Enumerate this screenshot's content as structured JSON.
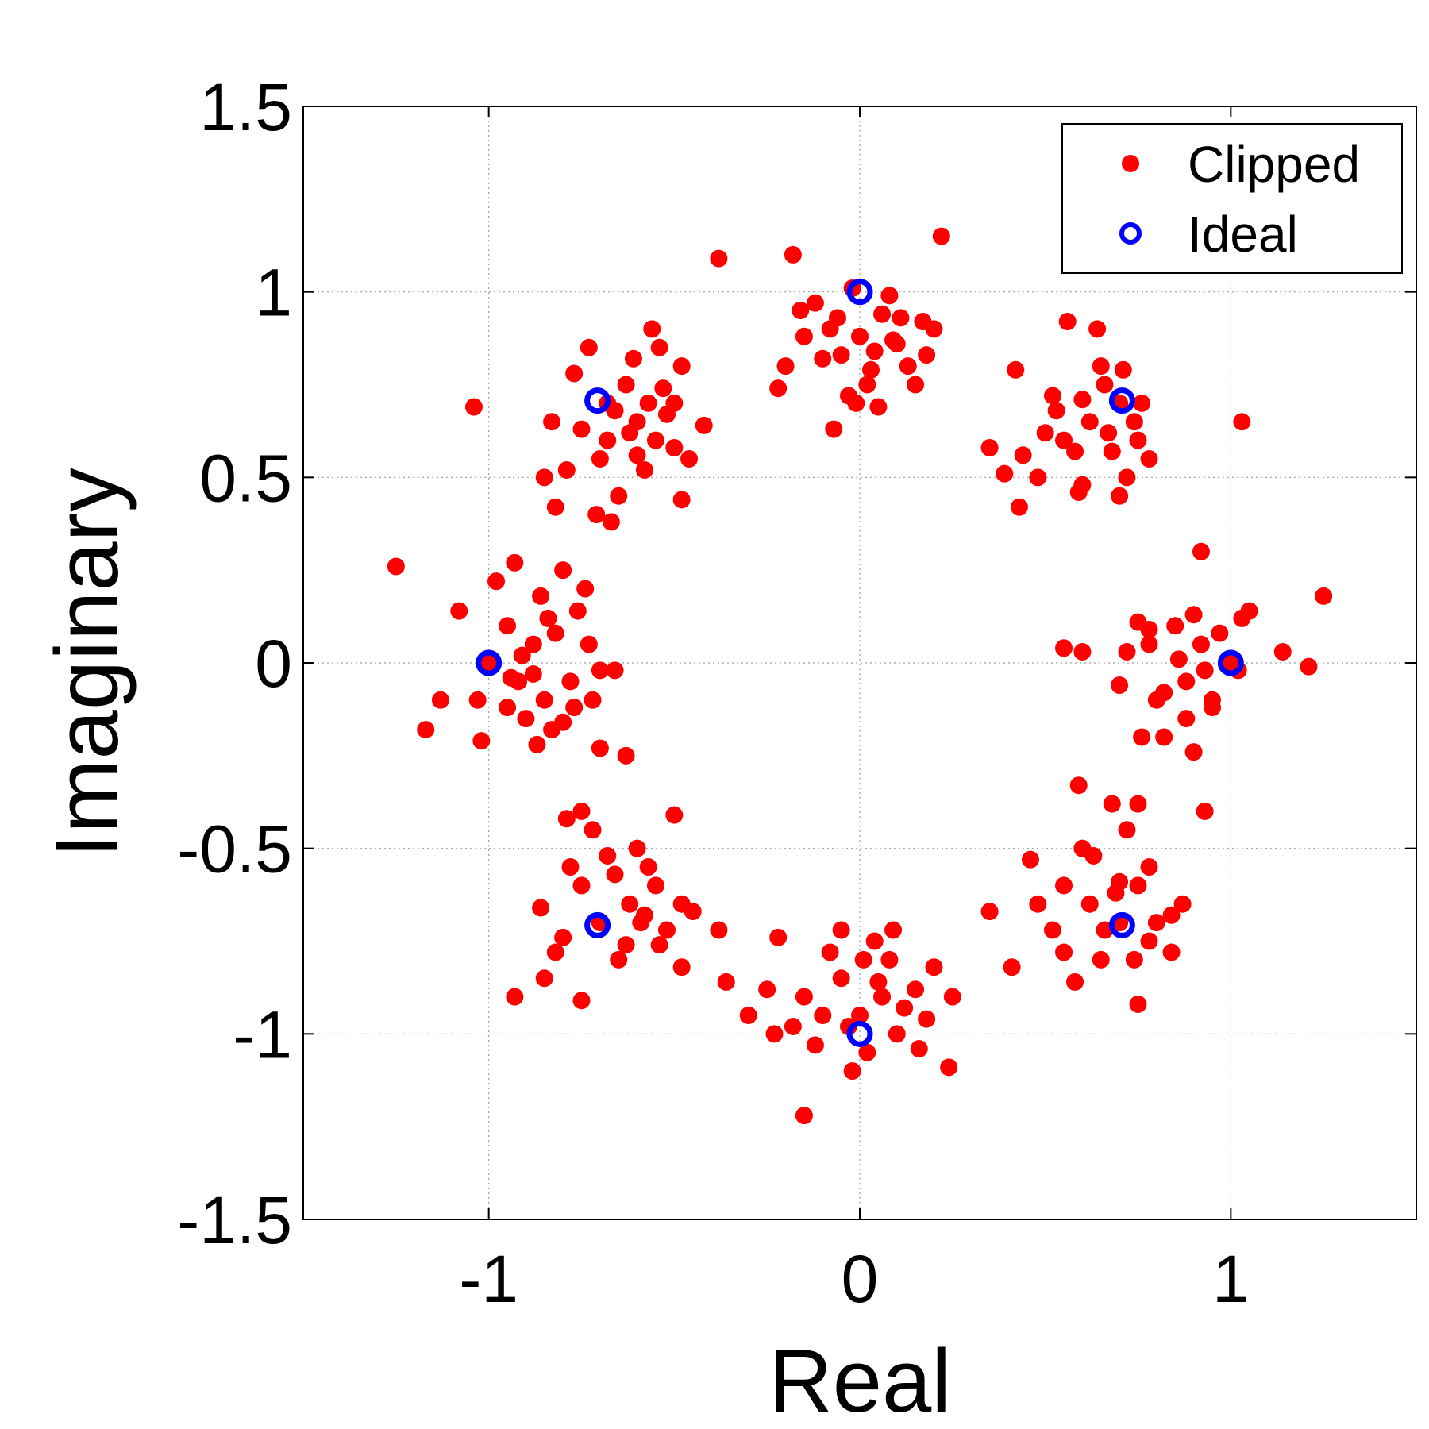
{
  "chart_data": {
    "type": "scatter",
    "title": "",
    "xlabel": "Real",
    "ylabel": "Imaginary",
    "xlim": [
      -1.5,
      1.5
    ],
    "ylim": [
      -1.5,
      1.5
    ],
    "xticks": [
      -1,
      0,
      1
    ],
    "xtick_labels": [
      "-1",
      "0",
      "1"
    ],
    "yticks": [
      -1.5,
      -1,
      -0.5,
      0,
      0.5,
      1,
      1.5
    ],
    "ytick_labels": [
      "-1.5",
      "-1",
      "-0.5",
      "0",
      "0.5",
      "1",
      "1.5"
    ],
    "grid": true,
    "legend_position": "top-right",
    "series": [
      {
        "name": "Clipped",
        "color": "#ff0000",
        "marker": "filled-circle",
        "points": [
          [
            -0.02,
            1.01
          ],
          [
            0.06,
            0.94
          ],
          [
            -0.08,
            0.9
          ],
          [
            0.1,
            0.86
          ],
          [
            -0.15,
            0.88
          ],
          [
            0.13,
            0.8
          ],
          [
            -0.05,
            0.83
          ],
          [
            0.02,
            0.75
          ],
          [
            -0.12,
            0.97
          ],
          [
            0.17,
            0.92
          ],
          [
            -0.2,
            0.8
          ],
          [
            0.05,
            0.69
          ],
          [
            -0.07,
            0.63
          ],
          [
            0.22,
            1.15
          ],
          [
            -0.18,
            1.1
          ],
          [
            0.2,
            0.9
          ],
          [
            -0.22,
            0.74
          ],
          [
            0.08,
            0.99
          ],
          [
            -0.03,
            0.72
          ],
          [
            0.15,
            0.75
          ],
          [
            0.0,
            0.88
          ],
          [
            -0.1,
            0.82
          ],
          [
            0.04,
            0.84
          ],
          [
            0.11,
            0.93
          ],
          [
            -0.16,
            0.95
          ],
          [
            0.18,
            0.83
          ],
          [
            -0.01,
            0.7
          ],
          [
            0.03,
            0.79
          ],
          [
            -0.06,
            0.93
          ],
          [
            0.09,
            0.87
          ],
          [
            -0.68,
            0.7
          ],
          [
            -0.6,
            0.65
          ],
          [
            -0.55,
            0.6
          ],
          [
            -0.7,
            0.55
          ],
          [
            -0.63,
            0.75
          ],
          [
            -0.5,
            0.7
          ],
          [
            -0.58,
            0.52
          ],
          [
            -0.75,
            0.63
          ],
          [
            -0.65,
            0.45
          ],
          [
            -0.48,
            0.8
          ],
          [
            -0.56,
            0.9
          ],
          [
            -0.85,
            0.5
          ],
          [
            -0.73,
            0.85
          ],
          [
            -0.46,
            0.55
          ],
          [
            -0.42,
            0.64
          ],
          [
            -0.67,
            0.38
          ],
          [
            -0.61,
            0.82
          ],
          [
            -0.53,
            0.74
          ],
          [
            -0.82,
            0.42
          ],
          [
            -0.77,
            0.78
          ],
          [
            -1.04,
            0.69
          ],
          [
            -0.38,
            1.09
          ],
          [
            -0.68,
            0.6
          ],
          [
            -0.62,
            0.62
          ],
          [
            -0.57,
            0.7
          ],
          [
            -0.52,
            0.67
          ],
          [
            -0.66,
            0.68
          ],
          [
            -0.71,
            0.4
          ],
          [
            -0.48,
            0.44
          ],
          [
            -0.6,
            0.56
          ],
          [
            -0.83,
            0.65
          ],
          [
            -0.79,
            0.52
          ],
          [
            -0.5,
            0.58
          ],
          [
            -0.54,
            0.85
          ],
          [
            0.7,
            0.7
          ],
          [
            0.62,
            0.65
          ],
          [
            0.55,
            0.6
          ],
          [
            0.75,
            0.6
          ],
          [
            0.65,
            0.8
          ],
          [
            0.52,
            0.72
          ],
          [
            0.78,
            0.55
          ],
          [
            0.6,
            0.48
          ],
          [
            0.72,
            0.5
          ],
          [
            0.48,
            0.5
          ],
          [
            0.56,
            0.92
          ],
          [
            0.64,
            0.9
          ],
          [
            0.44,
            0.56
          ],
          [
            0.42,
            0.79
          ],
          [
            0.35,
            0.58
          ],
          [
            0.39,
            0.51
          ],
          [
            0.43,
            0.42
          ],
          [
            0.76,
            0.7
          ],
          [
            0.74,
            0.65
          ],
          [
            0.68,
            0.57
          ],
          [
            0.58,
            0.57
          ],
          [
            0.5,
            0.62
          ],
          [
            1.03,
            0.65
          ],
          [
            0.7,
            0.45
          ],
          [
            0.59,
            0.46
          ],
          [
            0.67,
            0.62
          ],
          [
            0.6,
            0.71
          ],
          [
            0.53,
            0.68
          ],
          [
            0.66,
            0.75
          ],
          [
            0.71,
            0.79
          ],
          [
            -1.0,
            0.0
          ],
          [
            -0.92,
            -0.05
          ],
          [
            -0.88,
            0.05
          ],
          [
            -0.85,
            -0.1
          ],
          [
            -0.95,
            0.1
          ],
          [
            -0.82,
            0.08
          ],
          [
            -0.9,
            -0.15
          ],
          [
            -0.78,
            -0.05
          ],
          [
            -0.98,
            0.22
          ],
          [
            -1.08,
            0.14
          ],
          [
            -1.13,
            -0.1
          ],
          [
            -1.17,
            -0.18
          ],
          [
            -1.03,
            -0.1
          ],
          [
            -1.02,
            -0.21
          ],
          [
            -0.93,
            0.27
          ],
          [
            -0.86,
            0.18
          ],
          [
            -0.8,
            0.25
          ],
          [
            -0.74,
            0.2
          ],
          [
            -0.73,
            0.05
          ],
          [
            -0.7,
            -0.02
          ],
          [
            -0.66,
            -0.02
          ],
          [
            -0.72,
            -0.1
          ],
          [
            -0.83,
            -0.18
          ],
          [
            -0.87,
            -0.22
          ],
          [
            -0.95,
            -0.12
          ],
          [
            -0.77,
            -0.12
          ],
          [
            -1.25,
            0.26
          ],
          [
            -0.7,
            -0.23
          ],
          [
            -0.63,
            -0.25
          ],
          [
            -0.76,
            0.14
          ],
          [
            -0.91,
            0.02
          ],
          [
            -0.84,
            0.12
          ],
          [
            -0.88,
            -0.03
          ],
          [
            -0.94,
            -0.04
          ],
          [
            -0.8,
            -0.16
          ],
          [
            1.0,
            0.0
          ],
          [
            0.92,
            0.05
          ],
          [
            0.88,
            -0.05
          ],
          [
            0.85,
            0.1
          ],
          [
            0.95,
            -0.1
          ],
          [
            0.82,
            -0.08
          ],
          [
            0.9,
            0.13
          ],
          [
            0.78,
            0.05
          ],
          [
            0.92,
            0.3
          ],
          [
            1.03,
            0.12
          ],
          [
            1.05,
            0.14
          ],
          [
            1.14,
            0.03
          ],
          [
            1.21,
            -0.01
          ],
          [
            1.25,
            0.18
          ],
          [
            0.55,
            0.04
          ],
          [
            0.6,
            0.03
          ],
          [
            0.72,
            0.03
          ],
          [
            0.7,
            -0.06
          ],
          [
            0.75,
            0.11
          ],
          [
            0.78,
            0.09
          ],
          [
            0.8,
            -0.1
          ],
          [
            0.82,
            -0.2
          ],
          [
            0.88,
            -0.15
          ],
          [
            0.9,
            -0.24
          ],
          [
            0.95,
            -0.12
          ],
          [
            1.02,
            -0.02
          ],
          [
            0.86,
            0.01
          ],
          [
            0.93,
            -0.02
          ],
          [
            0.97,
            0.08
          ],
          [
            0.76,
            -0.2
          ],
          [
            -0.7,
            -0.7
          ],
          [
            -0.62,
            -0.65
          ],
          [
            -0.55,
            -0.6
          ],
          [
            -0.75,
            -0.6
          ],
          [
            -0.65,
            -0.8
          ],
          [
            -0.52,
            -0.72
          ],
          [
            -0.78,
            -0.55
          ],
          [
            -0.6,
            -0.5
          ],
          [
            -0.72,
            -0.45
          ],
          [
            -0.48,
            -0.65
          ],
          [
            -0.5,
            -0.41
          ],
          [
            -0.79,
            -0.42
          ],
          [
            -0.75,
            -0.4
          ],
          [
            -0.86,
            -0.66
          ],
          [
            -0.85,
            -0.85
          ],
          [
            -0.93,
            -0.9
          ],
          [
            -0.75,
            -0.91
          ],
          [
            -0.45,
            -0.67
          ],
          [
            -0.38,
            -0.72
          ],
          [
            -0.36,
            -0.86
          ],
          [
            -0.48,
            -0.82
          ],
          [
            -0.58,
            -0.68
          ],
          [
            -0.66,
            -0.57
          ],
          [
            -0.68,
            -0.52
          ],
          [
            -0.57,
            -0.55
          ],
          [
            -0.63,
            -0.76
          ],
          [
            -0.8,
            -0.74
          ],
          [
            -0.82,
            -0.78
          ],
          [
            -0.54,
            -0.76
          ],
          [
            -0.59,
            -0.7
          ],
          [
            0.7,
            -0.7
          ],
          [
            0.62,
            -0.65
          ],
          [
            0.55,
            -0.6
          ],
          [
            0.75,
            -0.6
          ],
          [
            0.65,
            -0.8
          ],
          [
            0.52,
            -0.72
          ],
          [
            0.78,
            -0.55
          ],
          [
            0.6,
            -0.5
          ],
          [
            0.72,
            -0.45
          ],
          [
            0.48,
            -0.65
          ],
          [
            0.59,
            -0.33
          ],
          [
            0.68,
            -0.38
          ],
          [
            0.75,
            -0.38
          ],
          [
            0.46,
            -0.53
          ],
          [
            0.35,
            -0.67
          ],
          [
            0.41,
            -0.82
          ],
          [
            0.58,
            -0.86
          ],
          [
            0.75,
            -0.92
          ],
          [
            0.84,
            -0.78
          ],
          [
            0.87,
            -0.65
          ],
          [
            0.93,
            -0.4
          ],
          [
            0.84,
            -0.68
          ],
          [
            0.69,
            -0.62
          ],
          [
            0.66,
            -0.72
          ],
          [
            0.63,
            -0.52
          ],
          [
            0.55,
            -0.78
          ],
          [
            0.8,
            -0.7
          ],
          [
            0.74,
            -0.8
          ],
          [
            0.7,
            -0.59
          ],
          [
            0.78,
            -0.75
          ],
          [
            0.0,
            -0.95
          ],
          [
            0.06,
            -0.9
          ],
          [
            -0.05,
            -0.85
          ],
          [
            0.1,
            -1.0
          ],
          [
            -0.1,
            -0.95
          ],
          [
            0.15,
            -0.88
          ],
          [
            -0.15,
            -0.9
          ],
          [
            0.02,
            -1.05
          ],
          [
            0.04,
            -0.75
          ],
          [
            -0.05,
            -0.72
          ],
          [
            -0.02,
            -1.1
          ],
          [
            -0.15,
            -1.22
          ],
          [
            0.24,
            -1.09
          ],
          [
            0.25,
            -0.9
          ],
          [
            0.2,
            -0.82
          ],
          [
            0.16,
            -1.04
          ],
          [
            -0.23,
            -1.0
          ],
          [
            -0.3,
            -0.95
          ],
          [
            -0.25,
            -0.88
          ],
          [
            -0.22,
            -0.74
          ],
          [
            -0.08,
            -0.78
          ],
          [
            0.08,
            -0.8
          ],
          [
            0.12,
            -0.93
          ],
          [
            -0.03,
            -0.98
          ],
          [
            0.05,
            -0.86
          ],
          [
            -0.12,
            -1.03
          ],
          [
            0.18,
            -0.96
          ],
          [
            -0.18,
            -0.98
          ],
          [
            0.01,
            -0.8
          ],
          [
            0.09,
            -0.72
          ]
        ]
      },
      {
        "name": "Ideal",
        "color": "#0000ff",
        "marker": "open-circle",
        "points": [
          [
            1,
            0
          ],
          [
            0.707,
            0.707
          ],
          [
            0,
            1
          ],
          [
            -0.707,
            0.707
          ],
          [
            -1,
            0
          ],
          [
            -0.707,
            -0.707
          ],
          [
            0,
            -1
          ],
          [
            0.707,
            -0.707
          ]
        ]
      }
    ]
  }
}
